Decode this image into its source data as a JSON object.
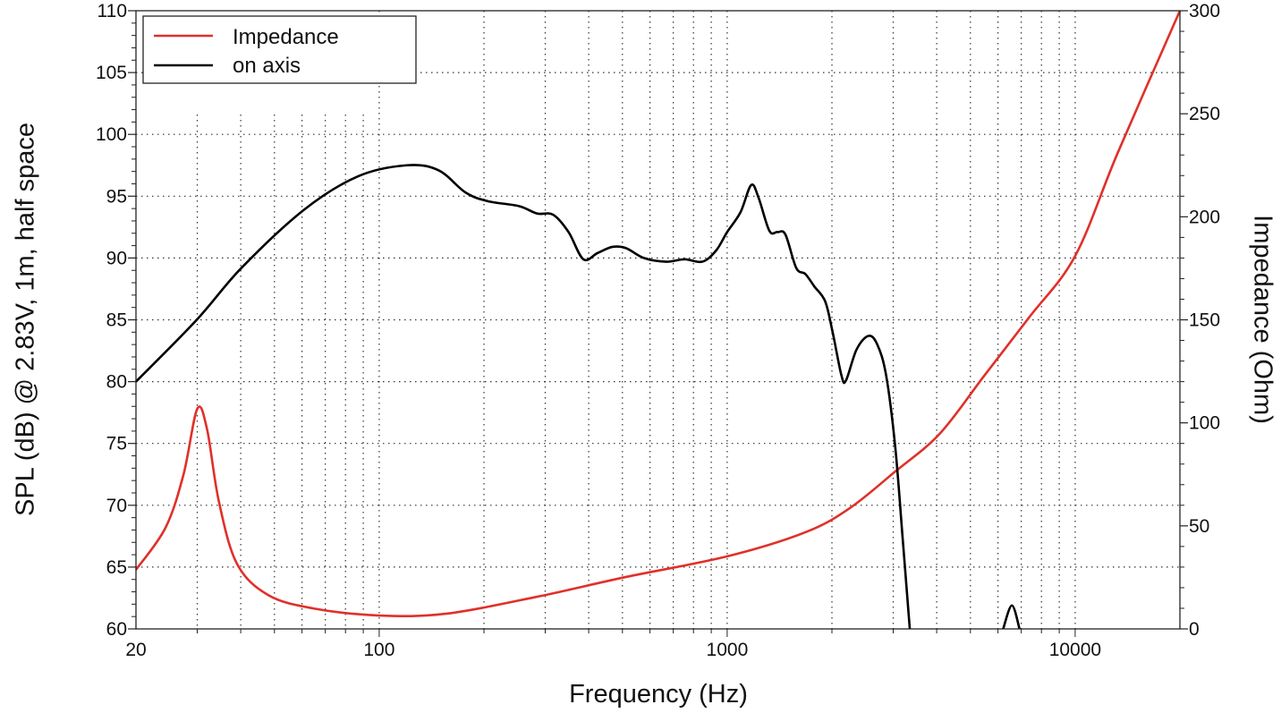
{
  "chart_data": {
    "type": "line",
    "xlabel": "Frequency (Hz)",
    "ylabel": "SPL (dB) @ 2.83V, 1m, half space",
    "y2label": "Impedance (Ohm)",
    "x_scale": "log",
    "xlim": [
      20,
      20000
    ],
    "ylim": [
      60,
      110
    ],
    "y2lim": [
      0,
      300
    ],
    "x_ticks": [
      "20",
      "100",
      "1000",
      "10000"
    ],
    "y_ticks": [
      "60",
      "65",
      "70",
      "75",
      "80",
      "85",
      "90",
      "95",
      "100",
      "105",
      "110"
    ],
    "y2_ticks": [
      "0",
      "50",
      "100",
      "150",
      "200",
      "250",
      "300"
    ],
    "grid": true,
    "legend": "top-left",
    "series": [
      {
        "name": "Impedance",
        "axis": "right",
        "color": "#e0302a",
        "x": [
          20,
          24.3,
          27.4,
          30,
          32,
          34.6,
          39,
          47.9,
          64.4,
          100,
          156,
          284,
          512,
          1000,
          1678,
          2250,
          3041,
          4080,
          5480,
          7360,
          10000,
          13250,
          20000
        ],
        "y": [
          28.7,
          49,
          75,
          106.8,
          97,
          62,
          31.7,
          16.5,
          10,
          6.5,
          7.4,
          15.6,
          25.2,
          35.2,
          46.9,
          58.6,
          76.4,
          94.7,
          122.9,
          151,
          181,
          231,
          300
        ]
      },
      {
        "name": "on axis",
        "axis": "left",
        "color": "#000000",
        "x": [
          20,
          29.9,
          40.2,
          60.8,
          86.8,
          120,
          148,
          177,
          205,
          252,
          284,
          316,
          350,
          386,
          424,
          468,
          512,
          576,
          668,
          754,
          848,
          929,
          1000,
          1092,
          1172,
          1230,
          1322,
          1396,
          1470,
          1579,
          1678,
          1780,
          1912,
          2006,
          2130,
          2195,
          2354,
          2546,
          2700,
          2863,
          3041,
          3190,
          3348
        ],
        "y": [
          80,
          85,
          89.2,
          93.9,
          96.6,
          97.5,
          97.1,
          95.3,
          94.6,
          94.2,
          93.6,
          93.5,
          92.1,
          89.9,
          90.4,
          90.9,
          90.8,
          90,
          89.7,
          89.9,
          89.7,
          90.6,
          92.1,
          93.7,
          95.9,
          94.9,
          92.2,
          92.1,
          91.9,
          89.2,
          88.7,
          87.7,
          86.5,
          84.1,
          80.5,
          80.1,
          82.6,
          83.7,
          83,
          80.5,
          74.7,
          67.5,
          60
        ],
        "extra_segment": {
          "x": [
            6210,
            6580,
            6920
          ],
          "y": [
            60,
            61.9,
            60
          ]
        }
      }
    ]
  }
}
